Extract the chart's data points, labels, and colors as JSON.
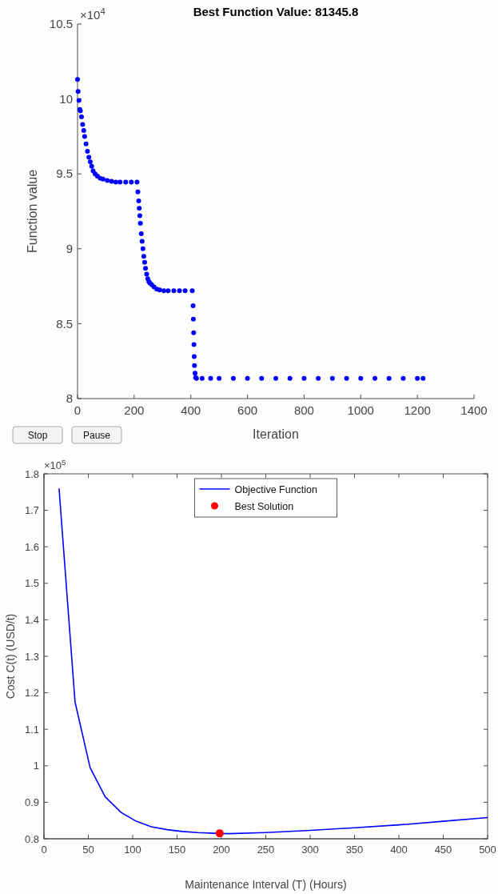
{
  "chart_data": [
    {
      "type": "scatter",
      "title": "Best Function Value: 81345.8",
      "xlabel": "Iteration",
      "ylabel": "Function value",
      "annotations": [
        "×10$^{4}$",
        "Stop",
        "Pause"
      ],
      "marker": "circle",
      "color": "#0000ff",
      "x": [
        0,
        2,
        5,
        8,
        10,
        14,
        18,
        22,
        25,
        30,
        35,
        40,
        45,
        50,
        55,
        62,
        70,
        80,
        90,
        105,
        120,
        135,
        150,
        170,
        190,
        210,
        213,
        216,
        218,
        220,
        222,
        225,
        228,
        231,
        234,
        237,
        240,
        244,
        248,
        252,
        256,
        262,
        270,
        280,
        290,
        305,
        320,
        340,
        360,
        380,
        405,
        408,
        409,
        410,
        411,
        412,
        413,
        415,
        417,
        420,
        440,
        470,
        500,
        550,
        600,
        650,
        700,
        750,
        800,
        850,
        900,
        950,
        1000,
        1050,
        1100,
        1150,
        1200,
        1220
      ],
      "values": [
        10.13,
        10.05,
        9.99,
        9.93,
        9.92,
        9.88,
        9.83,
        9.79,
        9.75,
        9.7,
        9.65,
        9.61,
        9.58,
        9.55,
        9.52,
        9.5,
        9.485,
        9.47,
        9.465,
        9.455,
        9.45,
        9.445,
        9.445,
        9.445,
        9.445,
        9.445,
        9.38,
        9.32,
        9.27,
        9.22,
        9.17,
        9.1,
        9.05,
        9.0,
        8.95,
        8.91,
        8.87,
        8.83,
        8.8,
        8.78,
        8.77,
        8.76,
        8.745,
        8.73,
        8.725,
        8.72,
        8.72,
        8.72,
        8.72,
        8.72,
        8.72,
        8.62,
        8.53,
        8.44,
        8.36,
        8.28,
        8.22,
        8.17,
        8.14,
        8.135,
        8.135,
        8.135,
        8.135,
        8.135,
        8.135,
        8.135,
        8.135,
        8.135,
        8.135,
        8.135,
        8.135,
        8.135,
        8.135,
        8.135,
        8.135,
        8.135,
        8.135,
        8.135
      ],
      "xlim": [
        0,
        1400
      ],
      "xticks": [
        0,
        200,
        400,
        600,
        800,
        1000,
        1200,
        1400
      ],
      "ylim": [
        8,
        10.5
      ],
      "yticks": [
        8,
        8.5,
        9,
        9.5,
        10,
        10.5
      ]
    },
    {
      "type": "line",
      "xlabel": "Maintenance Interval (T)   (Hours)",
      "ylabel": "Cost C(t)   (USD/t)",
      "annotations": [
        "×10$^{5}$"
      ],
      "legend": "top",
      "series": [
        {
          "name": "Objective Function",
          "color": "#0000ff",
          "x": [
            17,
            35,
            52,
            69,
            87,
            104,
            121,
            139,
            156,
            173,
            191,
            208,
            250,
            300,
            350,
            400,
            450,
            500
          ],
          "values": [
            1.76,
            1.175,
            0.995,
            0.915,
            0.872,
            0.848,
            0.833,
            0.825,
            0.82,
            0.817,
            0.815,
            0.814,
            0.817,
            0.823,
            0.83,
            0.838,
            0.848,
            0.858
          ]
        },
        {
          "name": "Best Solution",
          "type": "scatter",
          "color": "#ff0000",
          "x": [
            198
          ],
          "values": [
            0.815
          ]
        }
      ],
      "xlim": [
        0,
        500
      ],
      "xticks": [
        0,
        50,
        100,
        150,
        200,
        250,
        300,
        350,
        400,
        450,
        500
      ],
      "ylim": [
        0.8,
        1.8
      ],
      "yticks": [
        0.8,
        0.9,
        1,
        1.1,
        1.2,
        1.3,
        1.4,
        1.5,
        1.6,
        1.7,
        1.8
      ]
    }
  ]
}
